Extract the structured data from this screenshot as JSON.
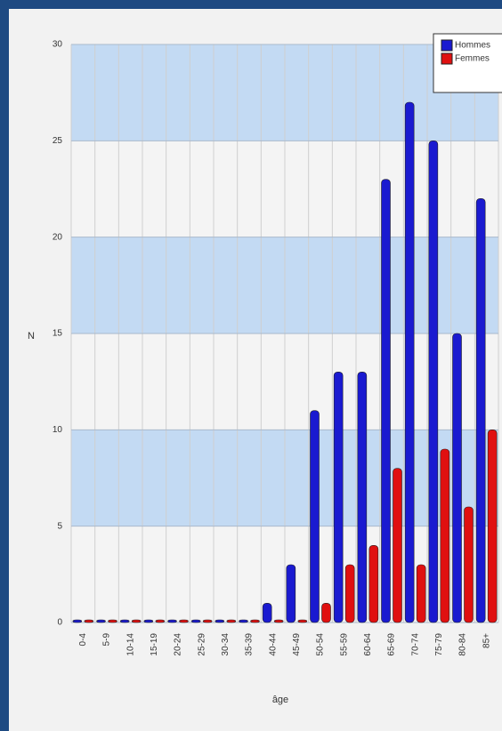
{
  "chart_data": {
    "type": "bar",
    "x_label": "âge",
    "y_label": "N",
    "categories": [
      "0-4",
      "5-9",
      "10-14",
      "15-19",
      "20-24",
      "25-29",
      "30-34",
      "35-39",
      "40-44",
      "45-49",
      "50-54",
      "55-59",
      "60-64",
      "65-69",
      "70-74",
      "75-79",
      "80-84",
      "85+"
    ],
    "series": [
      {
        "name": "Hommes",
        "color": "#1a1ad0",
        "values": [
          0,
          0,
          0,
          0,
          0,
          0,
          0,
          0,
          1,
          3,
          11,
          13,
          13,
          23,
          27,
          25,
          15,
          22
        ]
      },
      {
        "name": "Femmes",
        "color": "#e01010",
        "values": [
          0,
          0,
          0,
          0,
          0,
          0,
          0,
          0,
          0,
          0,
          1,
          3,
          4,
          8,
          3,
          9,
          6,
          10
        ]
      }
    ],
    "ylim": [
      0,
      30
    ],
    "yticks": [
      0,
      5,
      10,
      15,
      20,
      25,
      30
    ],
    "grid": true,
    "legend": "top-right"
  }
}
